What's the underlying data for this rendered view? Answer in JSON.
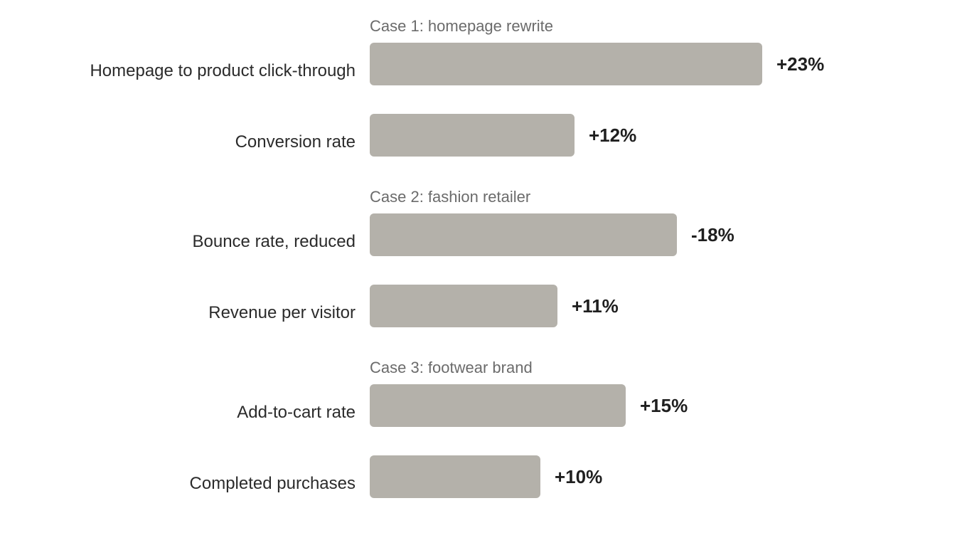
{
  "chart_data": {
    "type": "bar",
    "orientation": "horizontal",
    "bar_color": "#b4b1aa",
    "groups": [
      {
        "title": "Case 1: homepage rewrite",
        "rows": [
          {
            "label": "Homepage to product click-through",
            "value": 23,
            "value_label": "+23%"
          },
          {
            "label": "Conversion rate",
            "value": 12,
            "value_label": "+12%"
          }
        ]
      },
      {
        "title": "Case 2: fashion retailer",
        "rows": [
          {
            "label": "Bounce rate, reduced",
            "value": 18,
            "value_label": "-18%"
          },
          {
            "label": "Revenue per visitor",
            "value": 11,
            "value_label": "+11%"
          }
        ]
      },
      {
        "title": "Case 3: footwear brand",
        "rows": [
          {
            "label": "Add-to-cart rate",
            "value": 15,
            "value_label": "+15%"
          },
          {
            "label": "Completed purchases",
            "value": 10,
            "value_label": "+10%"
          }
        ]
      }
    ]
  }
}
